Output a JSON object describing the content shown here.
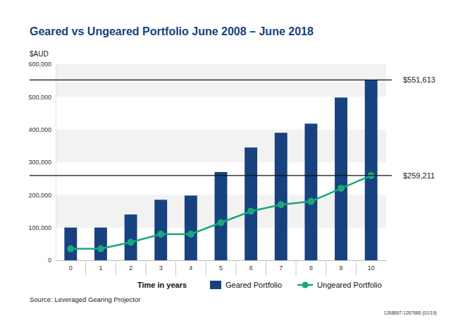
{
  "chart_data": {
    "type": "bar",
    "title": "Geared vs Ungeared Portfolio June 2008 – June 2018",
    "y_label": "$AUD",
    "x_label": "Time in years",
    "categories": [
      "0",
      "1",
      "2",
      "3",
      "4",
      "5",
      "6",
      "7",
      "8",
      "9",
      "10"
    ],
    "series": [
      {
        "name": "Geared Portfolio",
        "type": "bar",
        "color": "#17427f",
        "values": [
          100000,
          100000,
          140000,
          185000,
          198000,
          270000,
          345000,
          390000,
          418000,
          498000,
          551613
        ]
      },
      {
        "name": "Ungeared Portfolio",
        "type": "line",
        "color": "#1aa87a",
        "marker": "circle",
        "values": [
          35000,
          35000,
          55000,
          80000,
          80000,
          115000,
          150000,
          170000,
          180000,
          220000,
          259211
        ]
      }
    ],
    "ylim": [
      0,
      600000
    ],
    "yticks": [
      0,
      {
        "value": 100000,
        "label": "100,000"
      },
      {
        "value": 200000,
        "label": "200,000"
      },
      {
        "value": 300000,
        "label": "300,000"
      },
      {
        "value": 400000,
        "label": "400,000"
      },
      {
        "value": 500000,
        "label": "500,000"
      },
      {
        "value": 600000,
        "label": "600,000"
      }
    ],
    "grid": true,
    "legend": "bottom",
    "annotations": [
      {
        "value": 551613,
        "label": "$551,613"
      },
      {
        "value": 259211,
        "label": "$259,211"
      }
    ],
    "source": "Source: Leveraged Gearing Projector",
    "footnote": "1268667-1267686 (01/19)"
  }
}
